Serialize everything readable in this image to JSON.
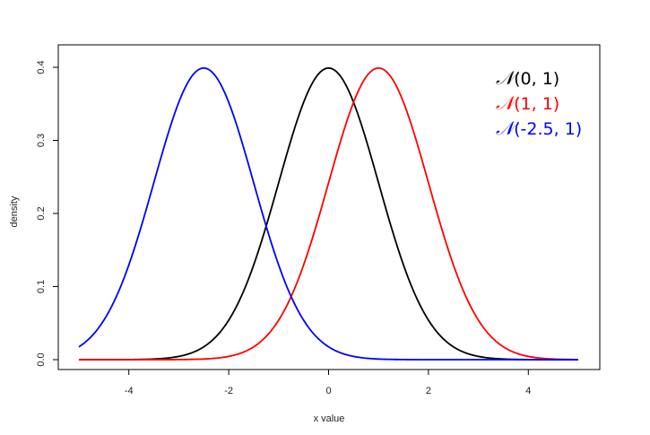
{
  "chart_data": {
    "type": "line",
    "title": "",
    "xlabel": "x value",
    "ylabel": "density",
    "xlim": [
      -5,
      5
    ],
    "ylim": [
      0,
      0.4
    ],
    "x_ticks": [
      "-4",
      "-2",
      "0",
      "2",
      "4"
    ],
    "y_ticks": [
      "0.0",
      "0.1",
      "0.2",
      "0.3",
      "0.4"
    ],
    "grid": false,
    "legend_position": "top-right",
    "series": [
      {
        "symbol": "𝒩",
        "params": "(0, 1)",
        "mean": 0,
        "sd": 1,
        "color": "#000000",
        "x": [
          -5,
          -4,
          -3,
          -2.5,
          -2,
          -1.5,
          -1,
          -0.5,
          0,
          0.5,
          1,
          1.5,
          2,
          2.5,
          3,
          4,
          5
        ],
        "y": [
          0.0,
          0.0001,
          0.0044,
          0.0175,
          0.054,
          0.1295,
          0.242,
          0.3521,
          0.3989,
          0.3521,
          0.242,
          0.1295,
          0.054,
          0.0175,
          0.0044,
          0.0001,
          0.0
        ]
      },
      {
        "symbol": "𝒩",
        "params": "(1, 1)",
        "mean": 1,
        "sd": 1,
        "color": "#ff0000",
        "x": [
          -5,
          -3,
          -2,
          -1,
          -0.5,
          0,
          0.5,
          1,
          1.5,
          2,
          2.5,
          3,
          4,
          5
        ],
        "y": [
          0.0,
          0.0001,
          0.0044,
          0.054,
          0.1295,
          0.242,
          0.3521,
          0.3989,
          0.3521,
          0.242,
          0.1295,
          0.054,
          0.0044,
          0.0001
        ]
      },
      {
        "symbol": "𝒩",
        "params": "(-2.5, 1)",
        "mean": -2.5,
        "sd": 1,
        "color": "#0000ff",
        "x": [
          -5,
          -4.5,
          -4,
          -3.5,
          -3,
          -2.5,
          -2,
          -1.5,
          -1,
          -0.5,
          0,
          1,
          2,
          3,
          4,
          5
        ],
        "y": [
          0.0175,
          0.054,
          0.1295,
          0.242,
          0.3521,
          0.3989,
          0.3521,
          0.242,
          0.1295,
          0.054,
          0.0175,
          0.0009,
          0.0,
          0.0,
          0.0,
          0.0
        ]
      }
    ]
  }
}
